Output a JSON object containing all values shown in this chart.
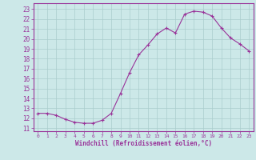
{
  "x": [
    0,
    1,
    2,
    3,
    4,
    5,
    6,
    7,
    8,
    9,
    10,
    11,
    12,
    13,
    14,
    15,
    16,
    17,
    18,
    19,
    20,
    21,
    22,
    23
  ],
  "y": [
    12.5,
    12.5,
    12.3,
    11.9,
    11.6,
    11.5,
    11.5,
    11.8,
    12.5,
    14.5,
    16.6,
    18.4,
    19.4,
    20.5,
    21.1,
    20.6,
    22.5,
    22.8,
    22.7,
    22.3,
    21.1,
    20.1,
    19.5,
    18.8
  ],
  "line_color": "#993399",
  "marker": "+",
  "marker_size": 3,
  "bg_color": "#cce8e8",
  "grid_color": "#aacccc",
  "xlabel": "Windchill (Refroidissement éolien,°C)",
  "ylabel_ticks": [
    11,
    12,
    13,
    14,
    15,
    16,
    17,
    18,
    19,
    20,
    21,
    22,
    23
  ],
  "xlabel_ticks": [
    0,
    1,
    2,
    3,
    4,
    5,
    6,
    7,
    8,
    9,
    10,
    11,
    12,
    13,
    14,
    15,
    16,
    17,
    18,
    19,
    20,
    21,
    22,
    23
  ],
  "ylim": [
    10.7,
    23.6
  ],
  "xlim": [
    -0.5,
    23.5
  ],
  "label_color": "#993399",
  "tick_color": "#993399",
  "spine_color": "#993399"
}
